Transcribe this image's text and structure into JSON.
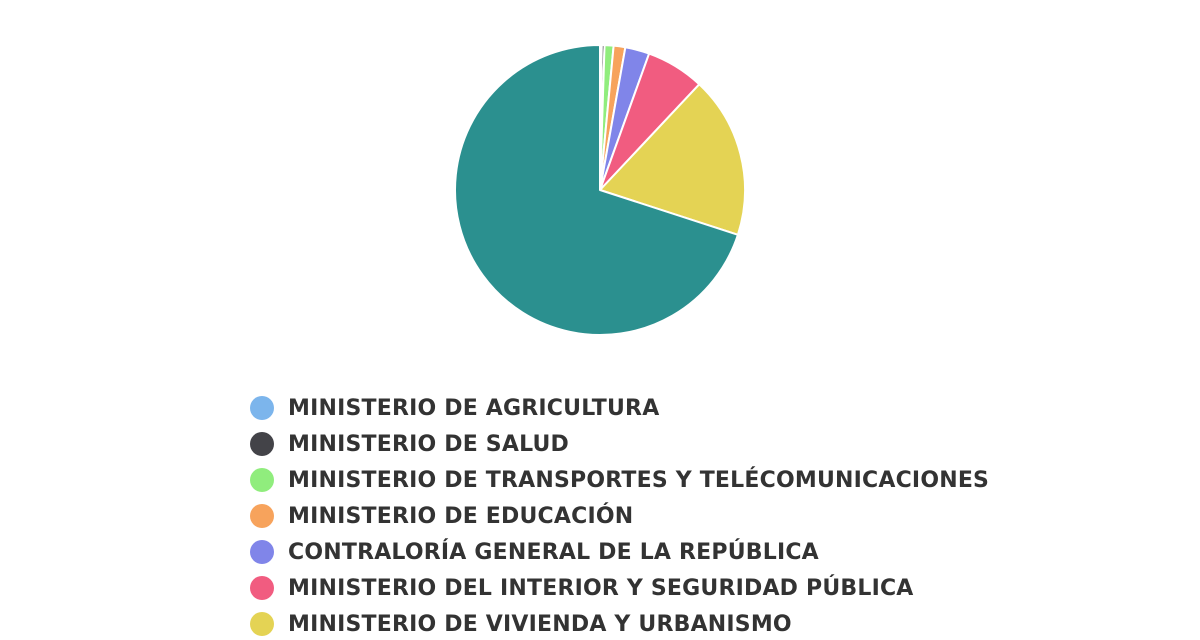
{
  "chart_data": {
    "type": "pie",
    "title": "",
    "legend_position": "bottom",
    "start_angle_deg": 0,
    "slices": [
      {
        "label": "MINISTERIO DE AGRICULTURA",
        "value": 0.2,
        "color": "#7cb5ec"
      },
      {
        "label": "MINISTERIO DE SALUD",
        "value": 0.3,
        "color": "#434348"
      },
      {
        "label": "MINISTERIO DE TRANSPORTES Y TELÉCOMUNICACIONES",
        "value": 1.0,
        "color": "#90ed7d"
      },
      {
        "label": "MINISTERIO DE EDUCACIÓN",
        "value": 1.3,
        "color": "#f7a35c"
      },
      {
        "label": "CONTRALORÍA GENERAL DE LA REPÚBLICA",
        "value": 2.7,
        "color": "#8085e9"
      },
      {
        "label": "MINISTERIO DEL INTERIOR Y SEGURIDAD PÚBLICA",
        "value": 6.5,
        "color": "#f15c80"
      },
      {
        "label": "MINISTERIO DE VIVIENDA Y URBANISMO",
        "value": 18.0,
        "color": "#e4d354"
      },
      {
        "label": "",
        "value": 70.0,
        "color": "#2b908f"
      }
    ]
  }
}
